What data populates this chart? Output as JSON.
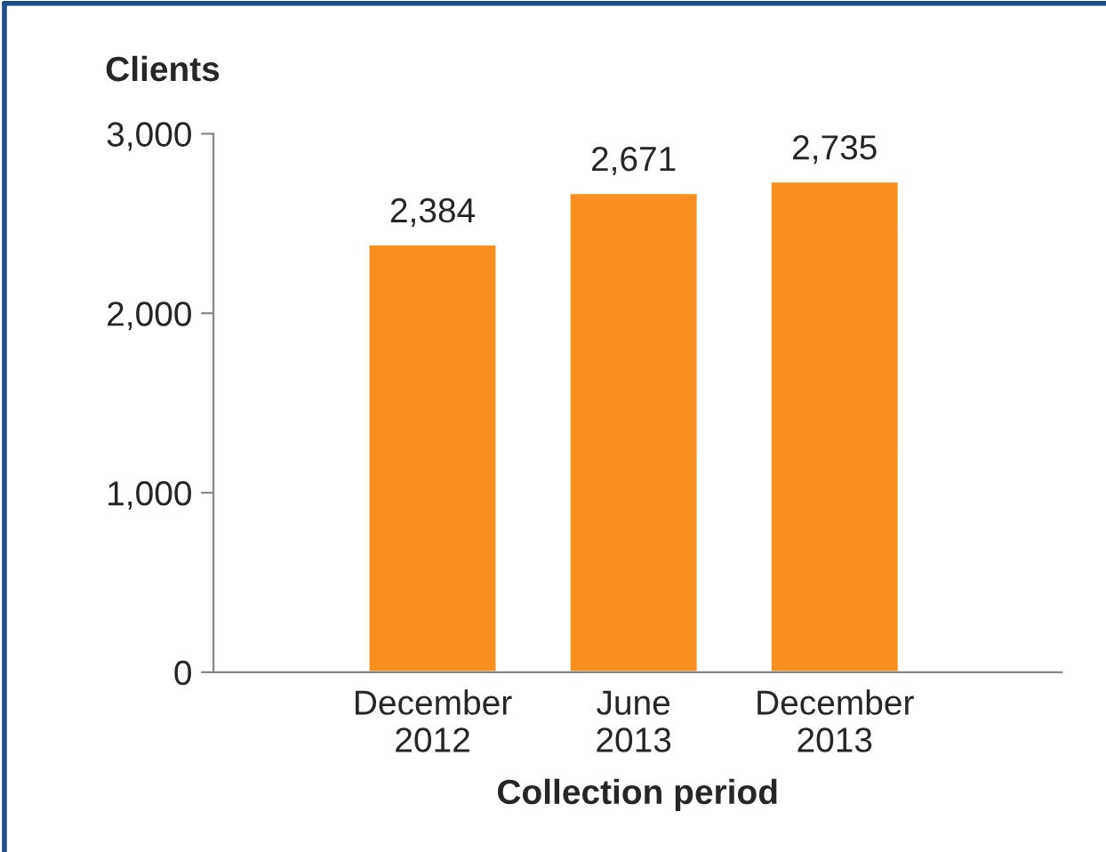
{
  "chart_data": {
    "type": "bar",
    "ylabel": "Clients",
    "xlabel": "Collection period",
    "categories": [
      "December\n2012",
      "June\n2013",
      "December\n2013"
    ],
    "values": [
      2384,
      2671,
      2735
    ],
    "color": "#f7901e",
    "ylim": [
      0,
      3000
    ],
    "yticks": [
      {
        "value": 0,
        "label": "0"
      },
      {
        "value": 1000,
        "label": "1,000"
      },
      {
        "value": 2000,
        "label": "2,000"
      },
      {
        "value": 3000,
        "label": "3,000"
      }
    ],
    "value_labels": [
      "2,384",
      "2,671",
      "2,735"
    ],
    "grid": false,
    "legend": false
  }
}
